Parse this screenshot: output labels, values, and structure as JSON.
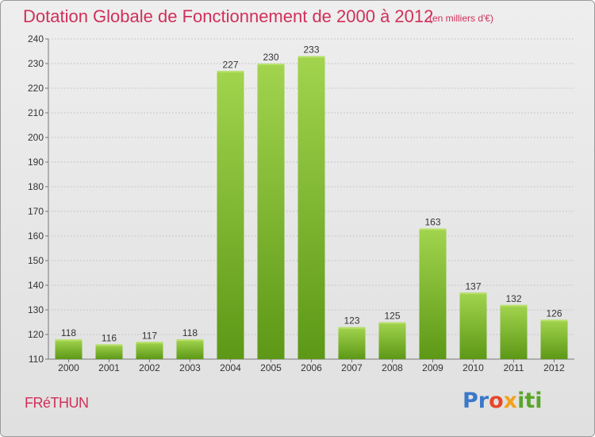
{
  "header": {
    "title": "Dotation Globale de Fonctionnement de 2000 à 2012",
    "subtitle": "(en milliers d'€)"
  },
  "footer": {
    "commune": "FRéTHUN",
    "logo": [
      "Pr",
      "o",
      "x",
      "iti"
    ]
  },
  "colors": {
    "title": "#d0305a",
    "bar_light": "#9fd24a",
    "bar_dark": "#5f9a18"
  },
  "chart_data": {
    "type": "bar",
    "title": "Dotation Globale de Fonctionnement de 2000 à 2012",
    "subtitle": "(en milliers d'€)",
    "categories": [
      "2000",
      "2001",
      "2002",
      "2003",
      "2004",
      "2005",
      "2006",
      "2007",
      "2008",
      "2009",
      "2010",
      "2011",
      "2012"
    ],
    "values": [
      118,
      116,
      117,
      118,
      227,
      230,
      233,
      123,
      125,
      163,
      137,
      132,
      126
    ],
    "ylim": [
      110,
      240
    ],
    "yticks": [
      110,
      120,
      130,
      140,
      150,
      160,
      170,
      180,
      190,
      200,
      210,
      220,
      230,
      240
    ],
    "grid": true,
    "legend": false
  }
}
